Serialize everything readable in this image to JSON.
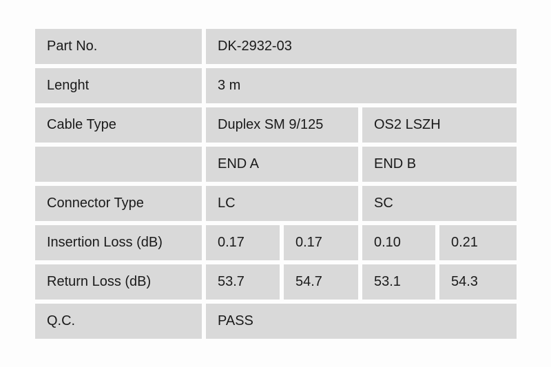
{
  "table": {
    "colors": {
      "cell_background": "#d9d9d9",
      "text": "#1a1a1a",
      "page_background": "#fdfdfd"
    },
    "rows": [
      {
        "label": "Part No.",
        "value": "DK-2932-03"
      },
      {
        "label": "Lenght",
        "value": "3 m"
      },
      {
        "label": "Cable Type",
        "value_a": "Duplex SM 9/125",
        "value_b": "OS2 LSZH"
      },
      {
        "label": "",
        "value_a": "END A",
        "value_b": "END B"
      },
      {
        "label": "Connector Type",
        "value_a": "LC",
        "value_b": "SC"
      },
      {
        "label": "Insertion Loss (dB)",
        "v1": "0.17",
        "v2": "0.17",
        "v3": "0.10",
        "v4": "0.21"
      },
      {
        "label": "Return Loss (dB)",
        "v1": "53.7",
        "v2": "54.7",
        "v3": "53.1",
        "v4": "54.3"
      },
      {
        "label": "Q.C.",
        "value": "PASS"
      }
    ]
  }
}
